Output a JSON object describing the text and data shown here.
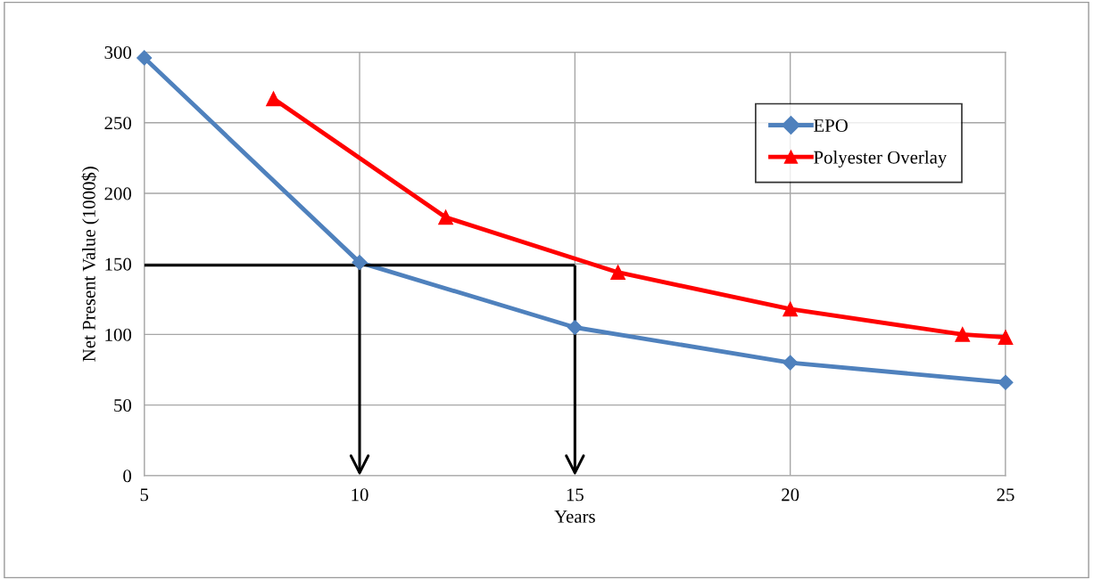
{
  "chart_data": {
    "type": "line",
    "xlabel": "Years",
    "ylabel": "Net Present Value (1000$)",
    "xlim": [
      5,
      25
    ],
    "xticks": [
      5,
      10,
      15,
      20,
      25
    ],
    "ylim": [
      0,
      300
    ],
    "yticks": [
      0,
      50,
      100,
      150,
      200,
      250,
      300
    ],
    "grid": true,
    "legend": "top right",
    "series": [
      {
        "name": "EPO",
        "color": "#4f81bd",
        "marker": "diamond",
        "x": [
          5,
          10,
          15,
          20,
          25
        ],
        "values": [
          296,
          151,
          105,
          80,
          66
        ]
      },
      {
        "name": "Polyester Overlay",
        "color": "#ff0000",
        "marker": "triangle",
        "x": [
          8,
          12,
          16,
          20,
          24,
          25
        ],
        "values": [
          267,
          183,
          144,
          118,
          100,
          98
        ]
      },
      {
        "color": "#000000",
        "marker": "none",
        "x": [
          5,
          15
        ],
        "values": [
          149,
          149
        ]
      },
      {
        "color": "#000000",
        "marker": "none",
        "x": [
          10,
          10
        ],
        "values": [
          149,
          2
        ]
      },
      {
        "color": "#000000",
        "marker": "none",
        "x": [
          15,
          15
        ],
        "values": [
          149,
          2
        ]
      }
    ]
  }
}
